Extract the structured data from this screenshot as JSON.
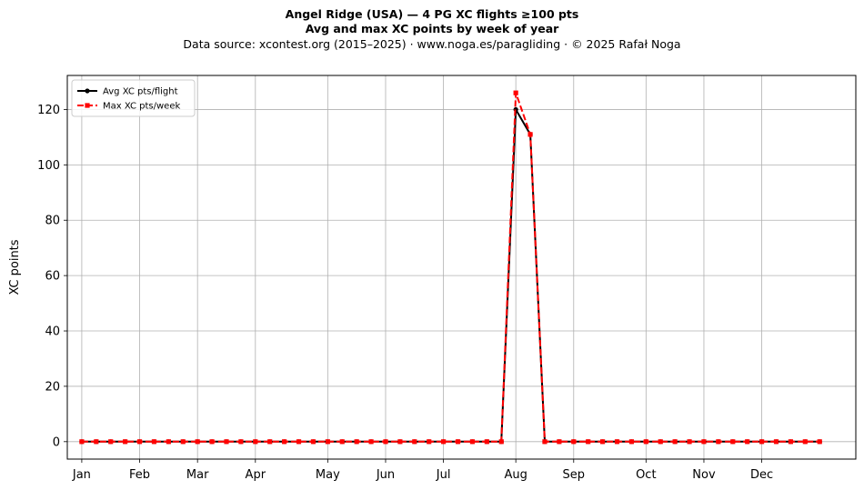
{
  "chart_data": {
    "type": "line",
    "title": "Angel Ridge (USA)  —  4 PG XC flights ≥100 pts",
    "title2": "Avg and max XC points by week of year",
    "subtitle": "Data source: xcontest.org (2015–2025)  ·  www.noga.es/paragliding  ·  © 2025 Rafał Noga",
    "ylabel": "XC points",
    "xlabel": "",
    "xlim": [
      -1,
      53.5
    ],
    "ylim": [
      -6.3,
      132.3
    ],
    "yticks": [
      0,
      20,
      40,
      60,
      80,
      100,
      120
    ],
    "xticks": [
      {
        "week": 0,
        "label": "Jan"
      },
      {
        "week": 4,
        "label": "Feb"
      },
      {
        "week": 8,
        "label": "Mar"
      },
      {
        "week": 12,
        "label": "Apr"
      },
      {
        "week": 17,
        "label": "May"
      },
      {
        "week": 21,
        "label": "Jun"
      },
      {
        "week": 25,
        "label": "Jul"
      },
      {
        "week": 30,
        "label": "Aug"
      },
      {
        "week": 34,
        "label": "Sep"
      },
      {
        "week": 39,
        "label": "Oct"
      },
      {
        "week": 43,
        "label": "Nov"
      },
      {
        "week": 47,
        "label": "Dec"
      }
    ],
    "grid": true,
    "legend_position": "top-left",
    "x": [
      0,
      1,
      2,
      3,
      4,
      5,
      6,
      7,
      8,
      9,
      10,
      11,
      12,
      13,
      14,
      15,
      16,
      17,
      18,
      19,
      20,
      21,
      22,
      23,
      24,
      25,
      26,
      27,
      28,
      29,
      30,
      31,
      32,
      33,
      34,
      35,
      36,
      37,
      38,
      39,
      40,
      41,
      42,
      43,
      44,
      45,
      46,
      47,
      48,
      49,
      50,
      51
    ],
    "series": [
      {
        "name": "Avg XC pts/flight",
        "color": "#000000",
        "style": "solid",
        "marker": "circle",
        "values": [
          0,
          0,
          0,
          0,
          0,
          0,
          0,
          0,
          0,
          0,
          0,
          0,
          0,
          0,
          0,
          0,
          0,
          0,
          0,
          0,
          0,
          0,
          0,
          0,
          0,
          0,
          0,
          0,
          0,
          0,
          120,
          111,
          0,
          0,
          0,
          0,
          0,
          0,
          0,
          0,
          0,
          0,
          0,
          0,
          0,
          0,
          0,
          0,
          0,
          0,
          0,
          0
        ]
      },
      {
        "name": "Max XC pts/week",
        "color": "#ff0000",
        "style": "dashed",
        "marker": "square",
        "values": [
          0,
          0,
          0,
          0,
          0,
          0,
          0,
          0,
          0,
          0,
          0,
          0,
          0,
          0,
          0,
          0,
          0,
          0,
          0,
          0,
          0,
          0,
          0,
          0,
          0,
          0,
          0,
          0,
          0,
          0,
          126,
          111,
          0,
          0,
          0,
          0,
          0,
          0,
          0,
          0,
          0,
          0,
          0,
          0,
          0,
          0,
          0,
          0,
          0,
          0,
          0,
          0
        ]
      }
    ]
  }
}
